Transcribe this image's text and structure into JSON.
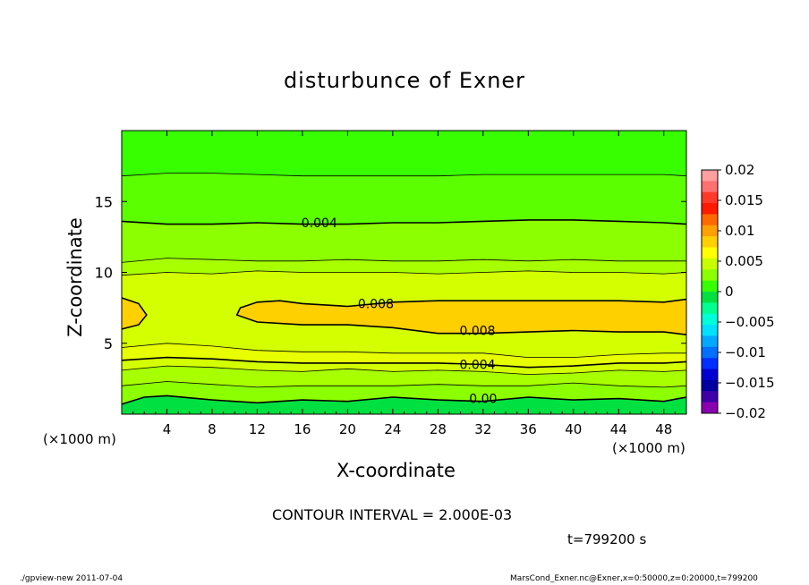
{
  "chart_data": {
    "type": "contour",
    "title": "disturbunce of Exner",
    "xlabel": "X-coordinate",
    "ylabel": "Z-coordinate",
    "x_unit_left": "(×1000 m)",
    "x_unit_right": "(×1000 m)",
    "xlim": [
      0,
      50
    ],
    "ylim": [
      0,
      20
    ],
    "x_ticks": [
      4,
      8,
      12,
      16,
      20,
      24,
      28,
      32,
      36,
      40,
      44,
      48
    ],
    "y_ticks": [
      5,
      10,
      15
    ],
    "contour_interval_label": "CONTOUR INTERVAL = 2.000E-03",
    "contour_interval": 0.002,
    "contour_labels": [
      {
        "text": "0.004",
        "x": 17.5,
        "z": 13.5
      },
      {
        "text": "0.008",
        "x": 22.5,
        "z": 7.8
      },
      {
        "text": "0.008",
        "x": 31.5,
        "z": 5.9
      },
      {
        "text": "0.004",
        "x": 31.5,
        "z": 3.5
      },
      {
        "text": "0.00",
        "x": 32.0,
        "z": 1.1
      }
    ],
    "contour_lines": [
      {
        "level": 0.0,
        "points": [
          [
            0,
            0.7
          ],
          [
            2,
            1.2
          ],
          [
            4,
            1.3
          ],
          [
            8,
            1.0
          ],
          [
            12,
            0.8
          ],
          [
            16,
            1.0
          ],
          [
            20,
            0.9
          ],
          [
            24,
            1.2
          ],
          [
            28,
            1.0
          ],
          [
            32,
            0.9
          ],
          [
            36,
            1.2
          ],
          [
            40,
            1.0
          ],
          [
            44,
            1.1
          ],
          [
            48,
            0.9
          ],
          [
            50,
            1.2
          ]
        ]
      },
      {
        "level": 0.002,
        "points": [
          [
            0,
            2.0
          ],
          [
            4,
            2.3
          ],
          [
            8,
            2.1
          ],
          [
            12,
            1.9
          ],
          [
            16,
            2.0
          ],
          [
            20,
            2.0
          ],
          [
            24,
            2.0
          ],
          [
            28,
            2.1
          ],
          [
            32,
            2.0
          ],
          [
            36,
            2.0
          ],
          [
            40,
            2.2
          ],
          [
            44,
            2.0
          ],
          [
            48,
            1.9
          ],
          [
            50,
            2.0
          ]
        ]
      },
      {
        "level": 0.002,
        "points": [
          [
            0,
            3.1
          ],
          [
            4,
            3.4
          ],
          [
            8,
            3.3
          ],
          [
            12,
            3.1
          ],
          [
            16,
            3.0
          ],
          [
            20,
            3.2
          ],
          [
            24,
            3.0
          ],
          [
            28,
            3.1
          ],
          [
            32,
            3.0
          ],
          [
            36,
            2.8
          ],
          [
            40,
            2.9
          ],
          [
            44,
            3.1
          ],
          [
            48,
            3.0
          ],
          [
            50,
            3.1
          ]
        ]
      },
      {
        "level": 0.004,
        "points": [
          [
            0,
            3.8
          ],
          [
            4,
            4.0
          ],
          [
            8,
            3.9
          ],
          [
            12,
            3.7
          ],
          [
            16,
            3.6
          ],
          [
            20,
            3.6
          ],
          [
            24,
            3.6
          ],
          [
            28,
            3.6
          ],
          [
            32,
            3.5
          ],
          [
            36,
            3.3
          ],
          [
            40,
            3.4
          ],
          [
            44,
            3.6
          ],
          [
            48,
            3.6
          ],
          [
            50,
            3.7
          ]
        ]
      },
      {
        "level": 0.006,
        "points": [
          [
            0,
            4.7
          ],
          [
            4,
            5.0
          ],
          [
            8,
            4.8
          ],
          [
            12,
            4.5
          ],
          [
            16,
            4.4
          ],
          [
            20,
            4.4
          ],
          [
            24,
            4.3
          ],
          [
            28,
            4.3
          ],
          [
            32,
            4.3
          ],
          [
            36,
            4.0
          ],
          [
            40,
            4.0
          ],
          [
            44,
            4.2
          ],
          [
            48,
            4.3
          ],
          [
            50,
            4.3
          ]
        ]
      },
      {
        "level": 0.006,
        "points": [
          [
            0,
            9.8
          ],
          [
            4,
            10.0
          ],
          [
            8,
            9.9
          ],
          [
            12,
            10.1
          ],
          [
            16,
            10.0
          ],
          [
            20,
            10.0
          ],
          [
            24,
            10.0
          ],
          [
            28,
            9.9
          ],
          [
            32,
            10.0
          ],
          [
            36,
            10.1
          ],
          [
            40,
            10.0
          ],
          [
            44,
            10.0
          ],
          [
            48,
            9.9
          ],
          [
            50,
            10.0
          ]
        ]
      },
      {
        "level": 0.006,
        "points": [
          [
            0,
            10.7
          ],
          [
            4,
            11.0
          ],
          [
            8,
            10.9
          ],
          [
            12,
            10.8
          ],
          [
            16,
            10.8
          ],
          [
            20,
            10.9
          ],
          [
            24,
            10.8
          ],
          [
            28,
            10.8
          ],
          [
            32,
            10.9
          ],
          [
            36,
            10.8
          ],
          [
            40,
            10.9
          ],
          [
            44,
            10.8
          ],
          [
            48,
            10.8
          ],
          [
            50,
            10.8
          ]
        ]
      },
      {
        "level": 0.004,
        "points": [
          [
            0,
            13.6
          ],
          [
            4,
            13.4
          ],
          [
            8,
            13.4
          ],
          [
            12,
            13.5
          ],
          [
            16,
            13.4
          ],
          [
            20,
            13.4
          ],
          [
            24,
            13.5
          ],
          [
            28,
            13.5
          ],
          [
            32,
            13.6
          ],
          [
            36,
            13.7
          ],
          [
            40,
            13.7
          ],
          [
            44,
            13.6
          ],
          [
            48,
            13.5
          ],
          [
            50,
            13.4
          ]
        ]
      },
      {
        "level": 0.002,
        "points": [
          [
            0,
            16.8
          ],
          [
            4,
            17.0
          ],
          [
            8,
            17.0
          ],
          [
            12,
            16.9
          ],
          [
            16,
            16.8
          ],
          [
            20,
            16.8
          ],
          [
            24,
            16.8
          ],
          [
            28,
            16.8
          ],
          [
            32,
            16.9
          ],
          [
            36,
            16.9
          ],
          [
            40,
            16.9
          ],
          [
            44,
            16.9
          ],
          [
            48,
            16.9
          ],
          [
            50,
            16.8
          ]
        ]
      },
      {
        "level": 0.008,
        "closed": false,
        "points": [
          [
            50,
            5.6
          ],
          [
            48,
            5.8
          ],
          [
            44,
            5.8
          ],
          [
            40,
            5.9
          ],
          [
            36,
            5.8
          ],
          [
            32,
            5.7
          ],
          [
            28,
            5.7
          ],
          [
            24,
            6.1
          ],
          [
            20,
            6.3
          ],
          [
            16,
            6.3
          ],
          [
            12,
            6.5
          ],
          [
            10.2,
            7.0
          ],
          [
            10.5,
            7.5
          ],
          [
            12,
            7.9
          ],
          [
            14,
            8.0
          ],
          [
            16,
            7.8
          ],
          [
            20,
            7.6
          ],
          [
            24,
            7.9
          ],
          [
            28,
            8.0
          ],
          [
            32,
            8.0
          ],
          [
            36,
            8.0
          ],
          [
            40,
            8.0
          ],
          [
            44,
            8.0
          ],
          [
            48,
            7.9
          ],
          [
            50,
            8.1
          ]
        ]
      },
      {
        "level": 0.008,
        "closed": false,
        "points": [
          [
            0,
            6.0
          ],
          [
            1.5,
            6.3
          ],
          [
            2.2,
            7.0
          ],
          [
            1.5,
            7.8
          ],
          [
            0,
            8.2
          ]
        ]
      }
    ],
    "colorbar": {
      "ticks": [
        "0.02",
        "0.015",
        "0.01",
        "0.005",
        "0",
        "−0.005",
        "−0.01",
        "−0.015",
        "−0.02"
      ],
      "min": -0.02,
      "max": 0.02,
      "colors": [
        "#ff9fa0",
        "#ff7070",
        "#ff3a2a",
        "#ff1a00",
        "#ff6a00",
        "#ffa000",
        "#ffd000",
        "#ffff00",
        "#c8ff00",
        "#8cff00",
        "#37ff00",
        "#00e040",
        "#00ff90",
        "#00ffd8",
        "#00e0ff",
        "#00a8ff",
        "#0070ff",
        "#0030ff",
        "#0000d0",
        "#0000a0",
        "#4000a8",
        "#8a00b0"
      ]
    }
  },
  "annotations": {
    "contour_note": "CONTOUR INTERVAL = 2.000E-03",
    "time_label": "t=799200 s",
    "footer_left": "./gpview-new   2011-07-04",
    "footer_right": "MarsCond_Exner.nc@Exner,x=0:50000,z=0:20000,t=799200"
  }
}
